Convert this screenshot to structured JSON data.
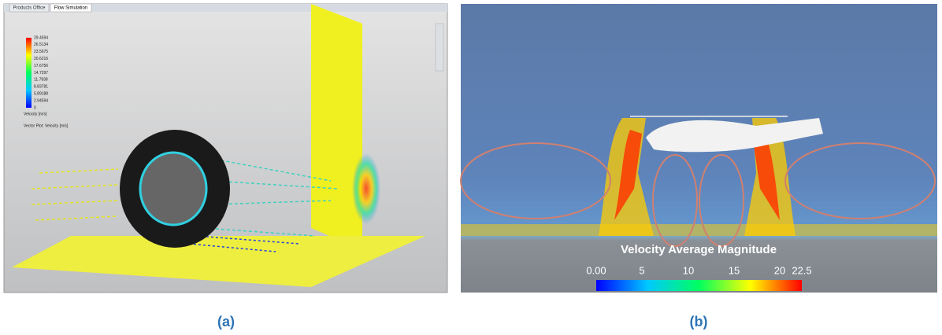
{
  "panels": {
    "a": {
      "tabs": [
        "Products Office",
        "Flow Simulation"
      ],
      "legend_labels": [
        "29.4594",
        "26.5134",
        "23.5675",
        "20.6216",
        "17.6756",
        "14.7297",
        "11.7838",
        "8.83781",
        "5.89188",
        "2.94594",
        "0"
      ],
      "legend_title": "Velocity [m/s]",
      "plot_title": "Vector Plot: Velocity [m/s]"
    },
    "b": {
      "title": "Velocity Average Magnitude",
      "scale_labels": [
        "0.00",
        "5",
        "10",
        "15",
        "20",
        "22.5"
      ]
    }
  },
  "captions": [
    "(a)",
    "(b)"
  ]
}
